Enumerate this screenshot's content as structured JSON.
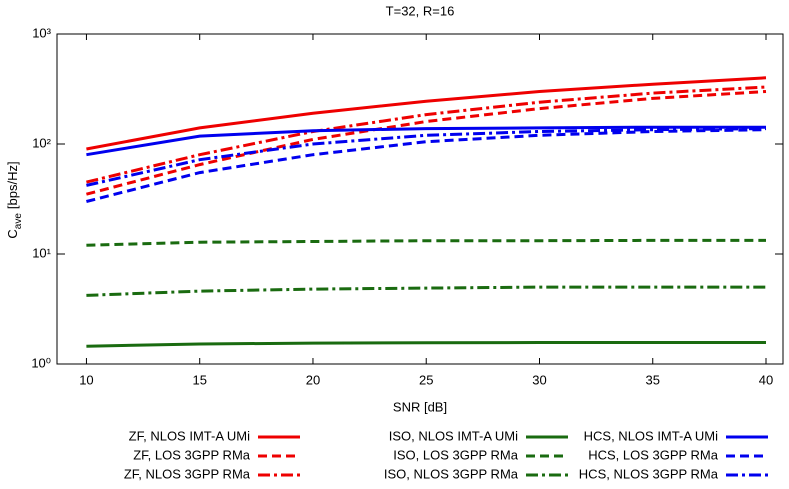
{
  "chart_data": {
    "type": "line",
    "title": "T=32, R=16",
    "xlabel": "SNR [dB]",
    "ylabel": "C",
    "ylabel_subscript": "ave",
    "ylabel_unit": "[bps/Hz]",
    "log_y": true,
    "x": [
      10,
      15,
      20,
      25,
      30,
      35,
      40
    ],
    "xlim": [
      8.7,
      40.75
    ],
    "xticks": [
      10,
      15,
      20,
      25,
      30,
      35,
      40
    ],
    "ylim": [
      1,
      1000
    ],
    "yticks": [
      {
        "value": 1,
        "label": "10⁰"
      },
      {
        "value": 10,
        "label": "10¹"
      },
      {
        "value": 100,
        "label": "10²"
      },
      {
        "value": 1000,
        "label": "10³"
      }
    ],
    "series": [
      {
        "name": "ZF, NLOS IMT-A UMi",
        "color": "#ee0000",
        "dash": "solid",
        "values": [
          90,
          140,
          190,
          245,
          300,
          350,
          400
        ]
      },
      {
        "name": "ZF, LOS 3GPP RMa",
        "color": "#ee0000",
        "dash": "dashed",
        "values": [
          35,
          65,
          110,
          160,
          210,
          260,
          300
        ]
      },
      {
        "name": "ZF, NLOS 3GPP RMa",
        "color": "#ee0000",
        "dash": "dashdot",
        "values": [
          45,
          80,
          130,
          185,
          240,
          290,
          330
        ]
      },
      {
        "name": "ISO, NLOS IMT-A UMi",
        "color": "#1a6b10",
        "dash": "solid",
        "values": [
          1.45,
          1.52,
          1.55,
          1.56,
          1.57,
          1.57,
          1.57
        ]
      },
      {
        "name": "ISO, LOS 3GPP RMa",
        "color": "#1a6b10",
        "dash": "dashed",
        "values": [
          12,
          12.8,
          13,
          13.2,
          13.2,
          13.3,
          13.3
        ]
      },
      {
        "name": "ISO, NLOS 3GPP RMa",
        "color": "#1a6b10",
        "dash": "dashdot",
        "values": [
          4.2,
          4.6,
          4.8,
          4.9,
          5,
          5,
          5
        ]
      },
      {
        "name": "HCS, NLOS IMT-A UMi",
        "color": "#0000ee",
        "dash": "solid",
        "values": [
          80,
          118,
          132,
          138,
          140,
          142,
          142
        ]
      },
      {
        "name": "HCS, LOS 3GPP RMa",
        "color": "#0000ee",
        "dash": "dashed",
        "values": [
          30,
          55,
          80,
          105,
          120,
          130,
          135
        ]
      },
      {
        "name": "HCS, NLOS 3GPP RMa",
        "color": "#0000ee",
        "dash": "dashdot",
        "values": [
          42,
          72,
          100,
          120,
          130,
          135,
          138
        ]
      }
    ]
  }
}
